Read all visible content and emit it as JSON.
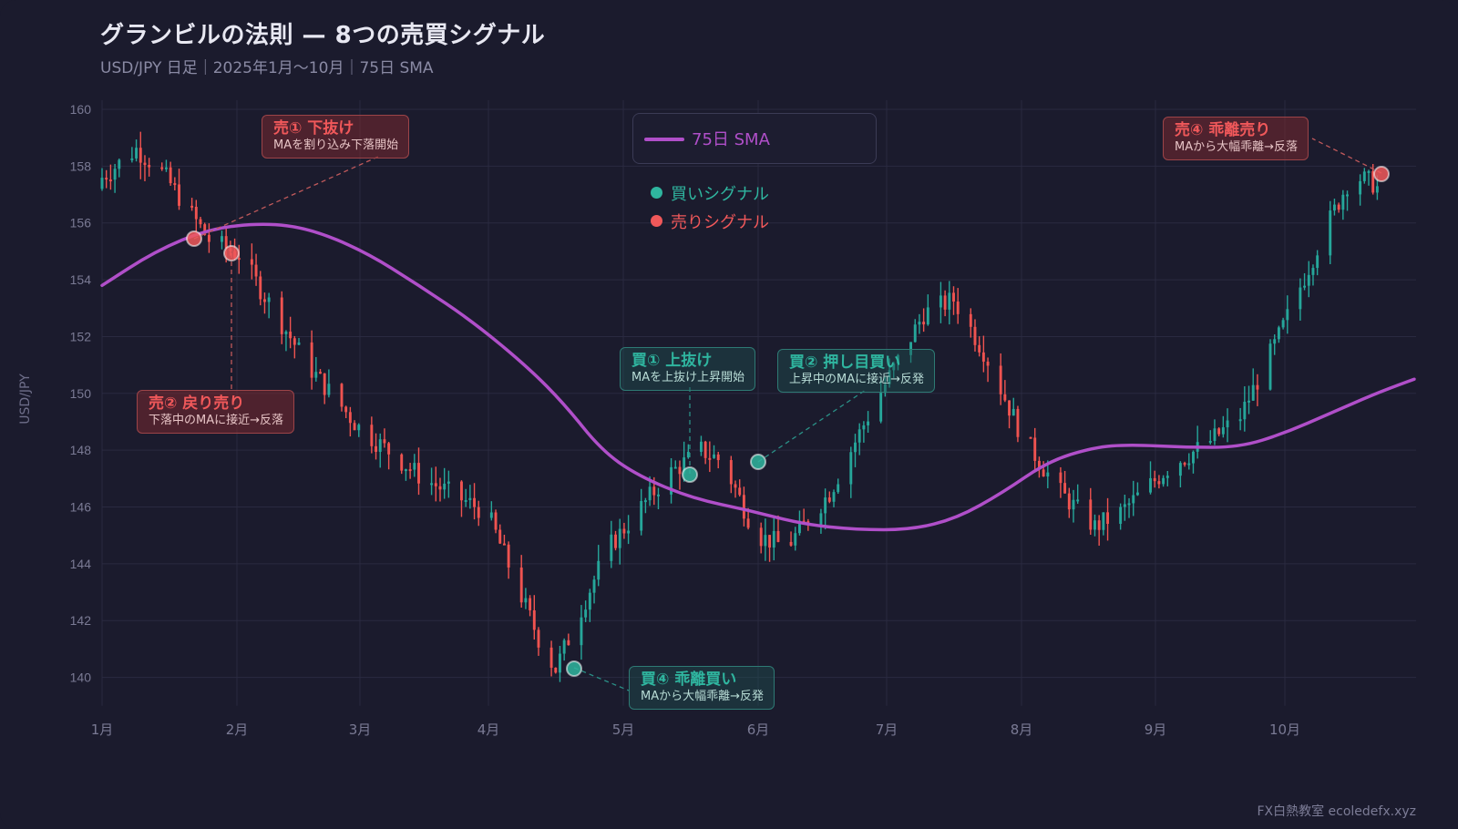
{
  "header": {
    "title": "グランビルの法則 — 8つの売買シグナル",
    "subtitle": "USD/JPY 日足｜2025年1月〜10月｜75日 SMA"
  },
  "footer": {
    "credit": "FX白熱教室 ecoledefx.xyz"
  },
  "legend": {
    "sma_label": "75日 SMA",
    "buy_label": "買いシグナル",
    "sell_label": "売りシグナル"
  },
  "colors": {
    "background": "#1b1b2d",
    "grid": "#2a2a40",
    "up_candle": "#26a69a",
    "down_candle": "#ef5350",
    "sma": "#b04fc9",
    "buy": "#2fb59f",
    "sell": "#f0585a"
  },
  "annotations": [
    {
      "id": "sell1",
      "type": "sell",
      "title": "売① 下抜け",
      "desc": "MAを割り込み下落開始"
    },
    {
      "id": "sell2",
      "type": "sell",
      "title": "売② 戻り売り",
      "desc": "下落中のMAに接近→反落"
    },
    {
      "id": "buy1",
      "type": "buy",
      "title": "買① 上抜け",
      "desc": "MAを上抜け上昇開始"
    },
    {
      "id": "buy2",
      "type": "buy",
      "title": "買② 押し目買い",
      "desc": "上昇中のMAに接近→反発"
    },
    {
      "id": "buy4",
      "type": "buy",
      "title": "買④ 乖離買い",
      "desc": "MAから大幅乖離→反発"
    },
    {
      "id": "sell4",
      "type": "sell",
      "title": "売④ 乖離売り",
      "desc": "MAから大幅乖離→反落"
    }
  ],
  "chart_data": {
    "type": "candlestick",
    "title": "グランビルの法則 — 8つの売買シグナル",
    "subtitle": "USD/JPY 日足｜2025年1月〜10月｜75日 SMA",
    "xlabel": "",
    "ylabel": "USD/JPY",
    "ylim": [
      139,
      161
    ],
    "yticks": [
      140,
      142,
      144,
      146,
      148,
      150,
      152,
      154,
      156,
      158,
      160
    ],
    "xticks": [
      "1月",
      "2月",
      "3月",
      "4月",
      "5月",
      "6月",
      "7月",
      "8月",
      "9月",
      "10月"
    ],
    "grid": true,
    "legend_position": "top-center",
    "close_path_monthly_approx": {
      "x": [
        "1月初",
        "1月中",
        "2月初",
        "3月初",
        "4月初",
        "4月下旬",
        "5月下旬",
        "6月初",
        "6月下旬",
        "7月下旬",
        "8月下旬",
        "9月中",
        "10月初",
        "10月下旬"
      ],
      "close": [
        157.6,
        157.5,
        155.0,
        150.5,
        146.5,
        140.3,
        147.5,
        147.6,
        144.5,
        153.0,
        145.5,
        147.5,
        150.0,
        157.4
      ]
    },
    "series": [
      {
        "name": "75日 SMA",
        "points": [
          {
            "x": "1月",
            "y": 153.8
          },
          {
            "x": "1月中",
            "y": 155.2
          },
          {
            "x": "2月",
            "y": 155.9
          },
          {
            "x": "2月中",
            "y": 156.0
          },
          {
            "x": "3月",
            "y": 155.3
          },
          {
            "x": "4月",
            "y": 152.5
          },
          {
            "x": "4月中",
            "y": 150.5
          },
          {
            "x": "5月",
            "y": 148.0
          },
          {
            "x": "5月中",
            "y": 146.7
          },
          {
            "x": "6月",
            "y": 146.0
          },
          {
            "x": "7月",
            "y": 145.2
          },
          {
            "x": "7月中",
            "y": 145.6
          },
          {
            "x": "8月",
            "y": 147.2
          },
          {
            "x": "8月中",
            "y": 148.0
          },
          {
            "x": "9月",
            "y": 148.1
          },
          {
            "x": "9月中",
            "y": 148.0
          },
          {
            "x": "10月",
            "y": 148.6
          },
          {
            "x": "10月中",
            "y": 149.5
          },
          {
            "x": "10月末",
            "y": 150.5
          }
        ]
      }
    ],
    "signals": [
      {
        "label": "売① 下抜け",
        "type": "sell",
        "x": "1月下旬",
        "y": 155.4
      },
      {
        "label": "売② 戻り売り",
        "type": "sell",
        "x": "1月末",
        "y": 154.9
      },
      {
        "label": "買④ 乖離買い",
        "type": "buy",
        "x": "4月下旬",
        "y": 140.3
      },
      {
        "label": "買① 上抜け",
        "type": "buy",
        "x": "5月下旬",
        "y": 147.1
      },
      {
        "label": "買② 押し目買い",
        "type": "buy",
        "x": "6月初",
        "y": 147.6
      },
      {
        "label": "売④ 乖離売り",
        "type": "sell",
        "x": "10月下旬",
        "y": 157.7
      }
    ]
  }
}
